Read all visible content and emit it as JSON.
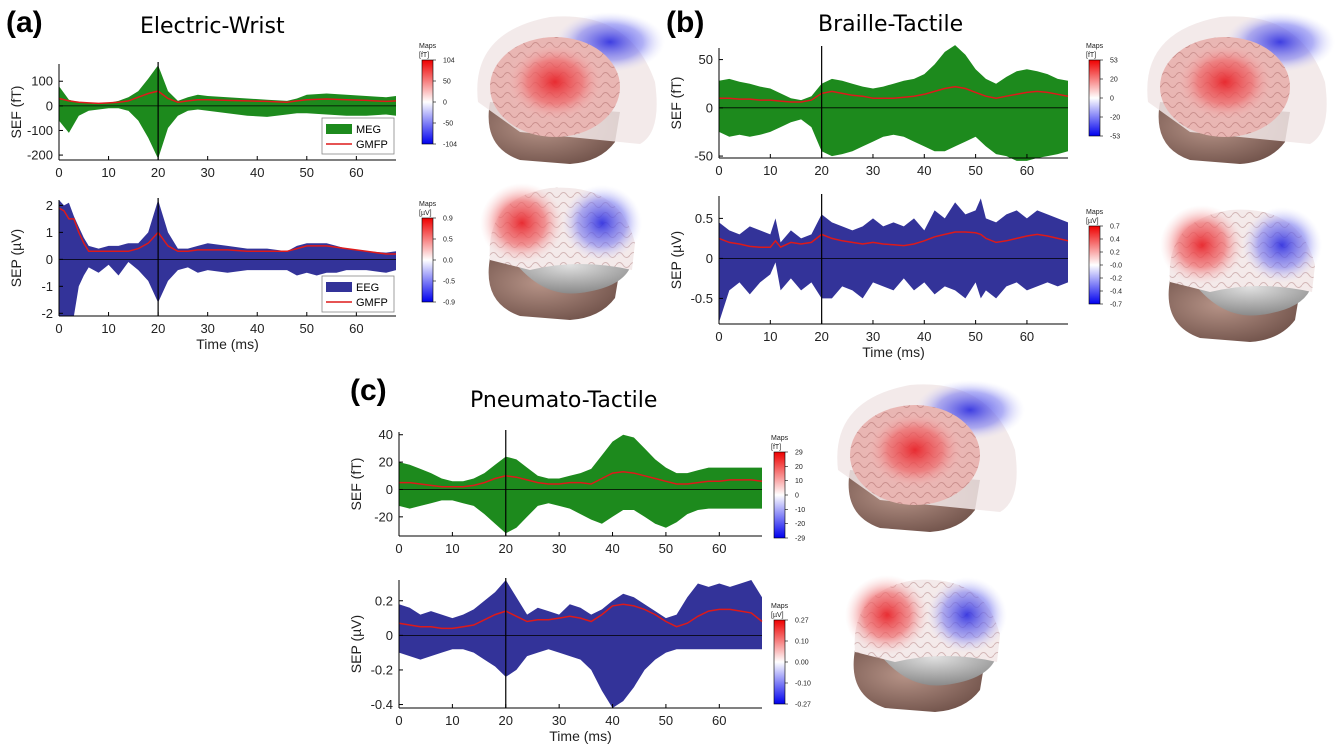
{
  "panels": [
    {
      "letter": "(a)",
      "title": "Electric-Wrist"
    },
    {
      "letter": "(b)",
      "title": "Braille-Tactile"
    },
    {
      "letter": "(c)",
      "title": "Pneumato-Tactile"
    }
  ],
  "colors": {
    "meg_fill": "#1d8a1d",
    "eeg_fill": "#333399",
    "gmfp_line": "#dd1a1a",
    "marker": "#000000"
  },
  "chart_data": [
    {
      "type": "area",
      "panel": "(a)",
      "modality": "MEG",
      "xlabel": "",
      "ylabel": "SEF (fT)",
      "xlim": [
        0,
        68
      ],
      "ylim": [
        -220,
        170
      ],
      "xticks": [
        0,
        10,
        20,
        30,
        40,
        50,
        60
      ],
      "yticks": [
        -200,
        -100,
        0,
        100
      ],
      "ytick_labels": [
        "-200",
        "-100",
        "0",
        "100"
      ],
      "marker_x": 20,
      "legend": [
        {
          "name": "MEG",
          "kind": "patch"
        },
        {
          "name": "GMFP",
          "kind": "line"
        }
      ],
      "legend_position": "bottom-right",
      "x": [
        0,
        2,
        4,
        6,
        8,
        10,
        12,
        14,
        16,
        18,
        20,
        22,
        24,
        26,
        28,
        30,
        34,
        38,
        42,
        46,
        48,
        50,
        54,
        58,
        62,
        66,
        68
      ],
      "upper": [
        80,
        25,
        15,
        10,
        8,
        12,
        20,
        35,
        60,
        110,
        165,
        60,
        20,
        35,
        45,
        40,
        35,
        30,
        25,
        20,
        30,
        45,
        50,
        45,
        40,
        35,
        40
      ],
      "lower": [
        -60,
        -110,
        -40,
        -20,
        -15,
        -10,
        -10,
        -20,
        -60,
        -130,
        -215,
        -90,
        -40,
        -20,
        -15,
        -20,
        -30,
        -40,
        -45,
        -35,
        -30,
        -30,
        -35,
        -40,
        -40,
        -35,
        -40
      ],
      "gmfp": [
        30,
        20,
        15,
        12,
        10,
        12,
        15,
        20,
        35,
        50,
        60,
        30,
        15,
        20,
        25,
        25,
        22,
        20,
        18,
        15,
        20,
        25,
        28,
        25,
        22,
        18,
        20
      ],
      "colorbar": {
        "title": "Maps",
        "unit": "[fT]",
        "labels": [
          "104",
          "50",
          "0",
          "-50",
          "-104"
        ]
      }
    },
    {
      "type": "area",
      "panel": "(a)",
      "modality": "EEG",
      "xlabel": "Time (ms)",
      "ylabel": "SEP (µV)",
      "xlim": [
        0,
        68
      ],
      "ylim": [
        -2.1,
        2.2
      ],
      "xticks": [
        0,
        10,
        20,
        30,
        40,
        50,
        60
      ],
      "yticks": [
        -2,
        -1,
        0,
        1,
        2
      ],
      "ytick_labels": [
        "-2",
        "-1",
        "0",
        "1",
        "2"
      ],
      "marker_x": 20,
      "legend": [
        {
          "name": "EEG",
          "kind": "patch"
        },
        {
          "name": "GMFP",
          "kind": "line"
        }
      ],
      "legend_position": "bottom-right",
      "x": [
        0,
        1,
        2,
        3,
        4,
        5,
        6,
        8,
        10,
        12,
        14,
        16,
        18,
        20,
        22,
        24,
        26,
        28,
        30,
        34,
        38,
        42,
        46,
        48,
        50,
        52,
        54,
        56,
        58,
        62,
        66,
        68
      ],
      "upper": [
        2.2,
        2.0,
        2.1,
        1.6,
        1.2,
        0.8,
        0.5,
        0.4,
        0.5,
        0.5,
        0.6,
        0.6,
        1.0,
        2.2,
        1.0,
        0.4,
        0.4,
        0.5,
        0.6,
        0.5,
        0.4,
        0.4,
        0.3,
        0.5,
        0.6,
        0.6,
        0.6,
        0.5,
        0.4,
        0.3,
        0.25,
        0.3
      ],
      "lower": [
        -2.1,
        -2.1,
        -2.1,
        -2.1,
        -1.0,
        -0.6,
        -0.3,
        -0.5,
        -0.2,
        -0.6,
        -0.1,
        -0.4,
        -0.8,
        -1.6,
        -0.8,
        -0.4,
        -0.3,
        -0.5,
        -0.4,
        -0.5,
        -0.4,
        -0.4,
        -0.4,
        -0.6,
        -0.5,
        -0.6,
        -0.5,
        -0.5,
        -0.4,
        -0.4,
        -0.5,
        -0.4
      ],
      "gmfp": [
        1.9,
        1.8,
        1.5,
        1.5,
        1.0,
        0.6,
        0.3,
        0.3,
        0.3,
        0.3,
        0.3,
        0.4,
        0.6,
        1.0,
        0.5,
        0.3,
        0.3,
        0.35,
        0.35,
        0.35,
        0.3,
        0.3,
        0.3,
        0.4,
        0.5,
        0.5,
        0.5,
        0.45,
        0.4,
        0.3,
        0.2,
        0.2
      ],
      "colorbar": {
        "title": "Maps",
        "unit": "[µV]",
        "labels": [
          "0.9",
          "0.5",
          "0.0",
          "-0.5",
          "-0.9"
        ]
      }
    },
    {
      "type": "area",
      "panel": "(b)",
      "modality": "MEG",
      "xlabel": "",
      "ylabel": "SEF (fT)",
      "xlim": [
        0,
        68
      ],
      "ylim": [
        -52,
        62
      ],
      "xticks": [
        0,
        10,
        20,
        30,
        40,
        50,
        60
      ],
      "yticks": [
        -50,
        0,
        50
      ],
      "ytick_labels": [
        "-50",
        "0",
        "50"
      ],
      "marker_x": 20,
      "x": [
        0,
        2,
        4,
        6,
        8,
        10,
        12,
        14,
        16,
        18,
        20,
        22,
        24,
        26,
        28,
        30,
        32,
        34,
        36,
        38,
        40,
        42,
        44,
        46,
        48,
        50,
        52,
        54,
        56,
        58,
        60,
        62,
        64,
        66,
        68
      ],
      "upper": [
        28,
        30,
        27,
        25,
        22,
        20,
        15,
        10,
        8,
        12,
        25,
        30,
        28,
        25,
        22,
        20,
        22,
        25,
        28,
        30,
        35,
        45,
        58,
        65,
        55,
        40,
        30,
        25,
        32,
        38,
        40,
        38,
        35,
        30,
        28
      ],
      "lower": [
        -25,
        -30,
        -28,
        -30,
        -28,
        -25,
        -20,
        -15,
        -12,
        -20,
        -45,
        -50,
        -48,
        -45,
        -40,
        -35,
        -30,
        -28,
        -30,
        -35,
        -40,
        -45,
        -45,
        -40,
        -35,
        -30,
        -40,
        -48,
        -50,
        -55,
        -55,
        -52,
        -50,
        -48,
        -45
      ],
      "gmfp": [
        10,
        10,
        9,
        9,
        8,
        8,
        7,
        6,
        6,
        8,
        15,
        17,
        15,
        13,
        12,
        10,
        10,
        10,
        11,
        12,
        14,
        17,
        20,
        22,
        20,
        16,
        12,
        10,
        12,
        14,
        16,
        17,
        16,
        14,
        12
      ],
      "colorbar": {
        "title": "Maps",
        "unit": "[fT]",
        "labels": [
          "53",
          "20",
          "0",
          "-20",
          "-53"
        ]
      }
    },
    {
      "type": "area",
      "panel": "(b)",
      "modality": "EEG",
      "xlabel": "Time (ms)",
      "ylabel": "SEP (µV)",
      "xlim": [
        0,
        68
      ],
      "ylim": [
        -0.82,
        0.78
      ],
      "xticks": [
        0,
        10,
        20,
        30,
        40,
        50,
        60
      ],
      "yticks": [
        -0.5,
        0,
        0.5
      ],
      "ytick_labels": [
        "-0.5",
        "0",
        "0.5"
      ],
      "marker_x": 20,
      "x": [
        0,
        2,
        4,
        6,
        8,
        10,
        11,
        12,
        14,
        16,
        18,
        20,
        22,
        24,
        26,
        28,
        30,
        32,
        34,
        36,
        38,
        40,
        42,
        44,
        46,
        48,
        50,
        51,
        52,
        54,
        56,
        58,
        60,
        62,
        64,
        66,
        68
      ],
      "upper": [
        0.45,
        0.35,
        0.3,
        0.4,
        0.35,
        0.3,
        0.5,
        0.2,
        0.35,
        0.25,
        0.3,
        0.55,
        0.45,
        0.4,
        0.35,
        0.4,
        0.5,
        0.4,
        0.45,
        0.4,
        0.5,
        0.35,
        0.6,
        0.5,
        0.7,
        0.55,
        0.6,
        0.75,
        0.5,
        0.45,
        0.55,
        0.6,
        0.5,
        0.6,
        0.55,
        0.5,
        0.45
      ],
      "lower": [
        -0.8,
        -0.4,
        -0.3,
        -0.45,
        -0.3,
        -0.2,
        -0.05,
        -0.4,
        -0.25,
        -0.4,
        -0.3,
        -0.5,
        -0.5,
        -0.35,
        -0.4,
        -0.5,
        -0.3,
        -0.35,
        -0.4,
        -0.25,
        -0.4,
        -0.3,
        -0.45,
        -0.35,
        -0.4,
        -0.5,
        -0.3,
        -0.5,
        -0.4,
        -0.5,
        -0.35,
        -0.3,
        -0.4,
        -0.35,
        -0.3,
        -0.35,
        -0.3
      ],
      "gmfp": [
        0.25,
        0.2,
        0.18,
        0.15,
        0.14,
        0.14,
        0.22,
        0.14,
        0.2,
        0.18,
        0.2,
        0.3,
        0.25,
        0.22,
        0.2,
        0.18,
        0.2,
        0.18,
        0.17,
        0.16,
        0.18,
        0.22,
        0.27,
        0.3,
        0.33,
        0.33,
        0.32,
        0.3,
        0.25,
        0.2,
        0.22,
        0.25,
        0.28,
        0.3,
        0.28,
        0.25,
        0.22
      ],
      "colorbar": {
        "title": "Maps",
        "unit": "[µV]",
        "labels": [
          "0.7",
          "0.4",
          "0.2",
          "-0.0",
          "-0.2",
          "-0.4",
          "-0.7"
        ]
      }
    },
    {
      "type": "area",
      "panel": "(c)",
      "modality": "MEG",
      "xlabel": "",
      "ylabel": "SEF (fT)",
      "xlim": [
        0,
        68
      ],
      "ylim": [
        -34,
        42
      ],
      "xticks": [
        0,
        10,
        20,
        30,
        40,
        50,
        60
      ],
      "yticks": [
        -20,
        0,
        20,
        40
      ],
      "ytick_labels": [
        "-20",
        "0",
        "20",
        "40"
      ],
      "marker_x": 20,
      "x": [
        0,
        2,
        4,
        6,
        8,
        10,
        12,
        14,
        16,
        18,
        20,
        22,
        24,
        26,
        28,
        30,
        32,
        34,
        36,
        38,
        40,
        42,
        44,
        46,
        48,
        50,
        52,
        54,
        56,
        58,
        60,
        62,
        64,
        66,
        68
      ],
      "upper": [
        20,
        18,
        15,
        12,
        8,
        6,
        6,
        8,
        12,
        18,
        24,
        22,
        16,
        10,
        8,
        8,
        10,
        12,
        15,
        25,
        35,
        40,
        38,
        30,
        22,
        16,
        12,
        12,
        14,
        16,
        16,
        16,
        16,
        16,
        16
      ],
      "lower": [
        -12,
        -14,
        -12,
        -10,
        -8,
        -8,
        -10,
        -12,
        -18,
        -25,
        -32,
        -28,
        -20,
        -12,
        -10,
        -12,
        -14,
        -18,
        -22,
        -25,
        -20,
        -15,
        -15,
        -20,
        -25,
        -28,
        -24,
        -18,
        -15,
        -14,
        -14,
        -14,
        -14,
        -14,
        -14
      ],
      "gmfp": [
        5,
        5,
        4,
        3,
        2,
        2,
        2,
        3,
        5,
        8,
        10,
        9,
        7,
        5,
        4,
        4,
        5,
        5,
        4,
        8,
        12,
        13,
        12,
        10,
        8,
        6,
        4,
        4,
        5,
        6,
        6,
        7,
        7,
        7,
        6
      ],
      "colorbar": {
        "title": "Maps",
        "unit": "[fT]",
        "labels": [
          "29",
          "20",
          "10",
          "0",
          "-10",
          "-20",
          "-29"
        ]
      }
    },
    {
      "type": "area",
      "panel": "(c)",
      "modality": "EEG",
      "xlabel": "Time (ms)",
      "ylabel": "SEP (µV)",
      "xlim": [
        0,
        68
      ],
      "ylim": [
        -0.42,
        0.32
      ],
      "xticks": [
        0,
        10,
        20,
        30,
        40,
        50,
        60
      ],
      "yticks": [
        -0.4,
        -0.2,
        0,
        0.2
      ],
      "ytick_labels": [
        "-0.4",
        "-0.2",
        "0",
        "0.2"
      ],
      "marker_x": 20,
      "x": [
        0,
        2,
        4,
        6,
        8,
        10,
        12,
        14,
        16,
        18,
        20,
        22,
        24,
        26,
        28,
        30,
        32,
        34,
        36,
        38,
        40,
        42,
        44,
        46,
        48,
        50,
        52,
        54,
        56,
        58,
        60,
        62,
        64,
        66,
        68
      ],
      "upper": [
        0.18,
        0.16,
        0.12,
        0.14,
        0.12,
        0.1,
        0.12,
        0.15,
        0.2,
        0.25,
        0.32,
        0.22,
        0.12,
        0.16,
        0.14,
        0.12,
        0.18,
        0.16,
        0.12,
        0.15,
        0.2,
        0.24,
        0.22,
        0.18,
        0.14,
        0.1,
        0.12,
        0.22,
        0.3,
        0.28,
        0.3,
        0.28,
        0.3,
        0.32,
        0.22
      ],
      "lower": [
        -0.1,
        -0.12,
        -0.14,
        -0.12,
        -0.1,
        -0.08,
        -0.08,
        -0.1,
        -0.14,
        -0.18,
        -0.24,
        -0.2,
        -0.12,
        -0.1,
        -0.08,
        -0.1,
        -0.12,
        -0.14,
        -0.2,
        -0.32,
        -0.42,
        -0.38,
        -0.3,
        -0.2,
        -0.14,
        -0.1,
        -0.08,
        -0.08,
        -0.08,
        -0.08,
        -0.08,
        -0.08,
        -0.08,
        -0.08,
        -0.08
      ],
      "gmfp": [
        0.07,
        0.06,
        0.05,
        0.05,
        0.04,
        0.04,
        0.05,
        0.06,
        0.09,
        0.12,
        0.14,
        0.11,
        0.08,
        0.09,
        0.09,
        0.1,
        0.11,
        0.1,
        0.08,
        0.12,
        0.17,
        0.18,
        0.17,
        0.15,
        0.12,
        0.08,
        0.05,
        0.07,
        0.11,
        0.14,
        0.15,
        0.15,
        0.14,
        0.13,
        0.08
      ],
      "colorbar": {
        "title": "Maps",
        "unit": "[µV]",
        "labels": [
          "0.27",
          "0.10",
          "0.00",
          "-0.10",
          "-0.27"
        ]
      }
    }
  ]
}
